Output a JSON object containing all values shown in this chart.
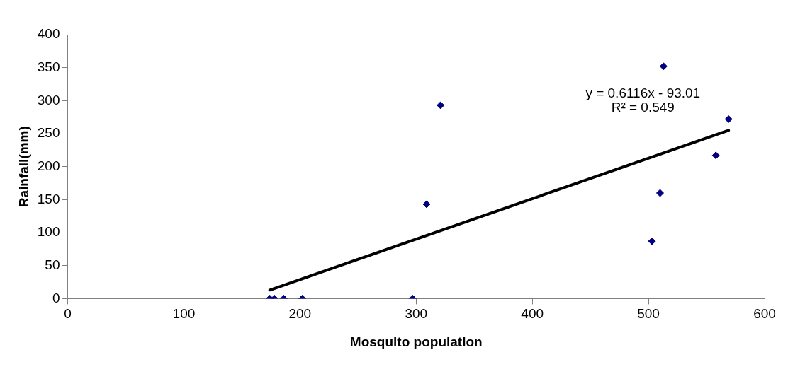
{
  "chart_data": {
    "type": "scatter",
    "xlabel": "Mosquito population",
    "ylabel": "Rainfall(mm)",
    "xlim": [
      0,
      600
    ],
    "xticks": [
      0,
      100,
      200,
      300,
      400,
      500,
      600
    ],
    "ylim": [
      0,
      400
    ],
    "yticks": [
      0,
      50,
      100,
      150,
      200,
      250,
      300,
      350,
      400
    ],
    "grid": false,
    "legend": false,
    "marker": "diamond",
    "series": [
      {
        "color": "#000080",
        "x": [
          174,
          178,
          186,
          202,
          297,
          309,
          321,
          513,
          569,
          558,
          510,
          503
        ],
        "values": [
          0,
          0,
          0,
          0,
          0,
          143,
          293,
          352,
          272,
          217,
          160,
          87
        ]
      },
      {
        "type": "line",
        "color": "#000000",
        "marker": "none",
        "x": [
          174,
          569
        ],
        "values": [
          13,
          255
        ]
      }
    ],
    "annotations": [
      "y = 0.6116x - 93.01",
      "R² = 0.549"
    ]
  }
}
